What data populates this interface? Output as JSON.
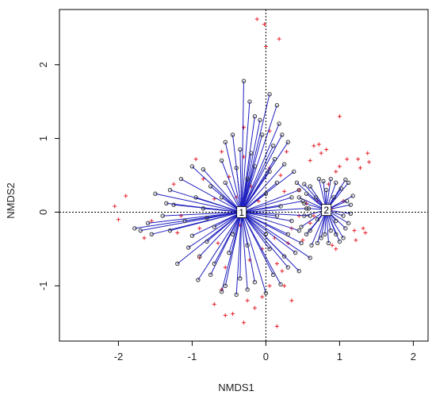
{
  "chart_data": {
    "type": "scatter",
    "title": "",
    "xlabel": "NMDS1",
    "ylabel": "NMDS2",
    "xlim": [
      -2.8,
      2.2
    ],
    "ylim": [
      -1.75,
      2.75
    ],
    "x_ticks": [
      -2,
      -1,
      0,
      1,
      2
    ],
    "y_ticks": [
      -1,
      0,
      1,
      2
    ],
    "reference_lines": {
      "x": 0,
      "y": 0,
      "style": "dotted"
    },
    "colors": {
      "spider_lines": "#1f1fbf",
      "site_points": "#333333",
      "species_points": "#e8202a",
      "frame": "#000000"
    },
    "centroids": [
      {
        "label": "1",
        "x": -0.33,
        "y": 0.0
      },
      {
        "label": "2",
        "x": 0.82,
        "y": 0.03
      }
    ],
    "group1_sites": [
      [
        -0.3,
        1.78
      ],
      [
        -0.22,
        1.5
      ],
      [
        -0.15,
        1.3
      ],
      [
        -0.08,
        1.25
      ],
      [
        0.05,
        1.6
      ],
      [
        0.15,
        1.45
      ],
      [
        0.18,
        1.2
      ],
      [
        0.22,
        1.05
      ],
      [
        -0.55,
        0.95
      ],
      [
        -0.35,
        0.85
      ],
      [
        0.1,
        0.9
      ],
      [
        0.3,
        0.95
      ],
      [
        -1.0,
        0.62
      ],
      [
        -0.85,
        0.58
      ],
      [
        -0.6,
        0.7
      ],
      [
        -0.4,
        0.6
      ],
      [
        -0.15,
        0.62
      ],
      [
        0.05,
        0.55
      ],
      [
        0.25,
        0.65
      ],
      [
        0.38,
        0.55
      ],
      [
        -1.3,
        0.3
      ],
      [
        -1.15,
        0.45
      ],
      [
        -0.95,
        0.2
      ],
      [
        -0.75,
        0.35
      ],
      [
        -0.55,
        0.4
      ],
      [
        -0.25,
        0.45
      ],
      [
        0.15,
        0.4
      ],
      [
        0.45,
        0.3
      ],
      [
        0.5,
        0.15
      ],
      [
        0.35,
        0.2
      ],
      [
        -1.5,
        0.25
      ],
      [
        -1.25,
        0.1
      ],
      [
        -0.85,
        0.05
      ],
      [
        0.2,
        0.08
      ],
      [
        0.55,
        0.05
      ],
      [
        0.6,
        -0.05
      ],
      [
        -1.6,
        -0.15
      ],
      [
        -1.4,
        -0.05
      ],
      [
        -1.1,
        -0.12
      ],
      [
        -0.8,
        -0.08
      ],
      [
        0.15,
        -0.05
      ],
      [
        0.35,
        -0.12
      ],
      [
        -1.78,
        -0.22
      ],
      [
        -1.7,
        -0.25
      ],
      [
        -1.55,
        -0.3
      ],
      [
        -1.3,
        -0.25
      ],
      [
        -1.0,
        -0.32
      ],
      [
        -0.7,
        -0.2
      ],
      [
        0.3,
        -0.3
      ],
      [
        0.45,
        -0.25
      ],
      [
        -1.05,
        -0.48
      ],
      [
        -0.9,
        -0.6
      ],
      [
        -0.7,
        -0.7
      ],
      [
        -0.5,
        -0.55
      ],
      [
        -0.25,
        -0.45
      ],
      [
        0.05,
        -0.5
      ],
      [
        0.25,
        -0.6
      ],
      [
        0.4,
        -0.55
      ],
      [
        -0.92,
        -0.92
      ],
      [
        -0.75,
        -0.85
      ],
      [
        -0.55,
        -1.0
      ],
      [
        -0.35,
        -0.9
      ],
      [
        -0.15,
        -0.95
      ],
      [
        0.1,
        -0.85
      ],
      [
        0.3,
        -0.75
      ],
      [
        0.45,
        -0.8
      ],
      [
        -0.6,
        -1.08
      ],
      [
        -0.4,
        -1.12
      ],
      [
        -0.25,
        -1.05
      ],
      [
        0.0,
        -1.1
      ],
      [
        0.2,
        -0.98
      ],
      [
        -0.8,
        -0.4
      ],
      [
        -0.45,
        -0.3
      ],
      [
        0.0,
        -0.3
      ],
      [
        -0.6,
        0.2
      ],
      [
        0.0,
        0.25
      ],
      [
        -0.2,
        0.8
      ],
      [
        0.12,
        0.72
      ],
      [
        -1.2,
        -0.7
      ],
      [
        0.48,
        -0.42
      ],
      [
        -0.05,
        1.05
      ],
      [
        -0.45,
        1.05
      ],
      [
        0.6,
        -0.62
      ],
      [
        -1.35,
        0.12
      ]
    ],
    "group2_sites": [
      [
        0.42,
        0.4
      ],
      [
        0.52,
        0.38
      ],
      [
        0.6,
        0.35
      ],
      [
        0.72,
        0.45
      ],
      [
        0.78,
        0.42
      ],
      [
        0.88,
        0.45
      ],
      [
        0.95,
        0.4
      ],
      [
        1.02,
        0.32
      ],
      [
        1.08,
        0.44
      ],
      [
        1.12,
        0.4
      ],
      [
        0.45,
        0.2
      ],
      [
        0.52,
        0.12
      ],
      [
        0.55,
        0.25
      ],
      [
        1.1,
        0.15
      ],
      [
        1.15,
        0.1
      ],
      [
        1.18,
        0.22
      ],
      [
        0.52,
        -0.05
      ],
      [
        0.48,
        -0.2
      ],
      [
        0.55,
        -0.3
      ],
      [
        0.6,
        -0.25
      ],
      [
        1.05,
        -0.05
      ],
      [
        1.12,
        -0.15
      ],
      [
        1.08,
        -0.22
      ],
      [
        0.62,
        -0.45
      ],
      [
        0.7,
        -0.42
      ],
      [
        0.75,
        -0.35
      ],
      [
        0.8,
        -0.3
      ],
      [
        0.88,
        -0.25
      ],
      [
        0.95,
        -0.3
      ],
      [
        1.0,
        -0.4
      ],
      [
        1.05,
        -0.35
      ],
      [
        0.68,
        0.2
      ],
      [
        0.92,
        0.2
      ],
      [
        0.7,
        -0.1
      ],
      [
        0.95,
        -0.12
      ],
      [
        0.82,
        0.3
      ],
      [
        0.85,
        -0.42
      ],
      [
        0.58,
        0.05
      ],
      [
        1.15,
        -0.02
      ]
    ],
    "species": [
      [
        -0.12,
        2.62
      ],
      [
        -0.02,
        2.55
      ],
      [
        0.18,
        2.35
      ],
      [
        0.0,
        2.25
      ],
      [
        -0.3,
        1.15
      ],
      [
        0.05,
        1.1
      ],
      [
        -0.6,
        0.82
      ],
      [
        -0.95,
        0.72
      ],
      [
        -0.3,
        0.75
      ],
      [
        0.28,
        0.82
      ],
      [
        -0.5,
        0.48
      ],
      [
        -1.25,
        0.38
      ],
      [
        -0.7,
        0.18
      ],
      [
        -0.2,
        0.35
      ],
      [
        0.25,
        0.28
      ],
      [
        -1.9,
        0.22
      ],
      [
        -2.05,
        0.08
      ],
      [
        -1.55,
        -0.12
      ],
      [
        -1.65,
        -0.35
      ],
      [
        -2.0,
        -0.1
      ],
      [
        -1.2,
        -0.28
      ],
      [
        -0.9,
        -0.22
      ],
      [
        -0.35,
        -0.18
      ],
      [
        0.3,
        -0.42
      ],
      [
        -0.9,
        -0.62
      ],
      [
        -0.55,
        -0.75
      ],
      [
        -0.22,
        -0.65
      ],
      [
        0.15,
        -0.7
      ],
      [
        0.05,
        -1.0
      ],
      [
        0.35,
        -1.2
      ],
      [
        -0.6,
        -1.05
      ],
      [
        -0.7,
        -1.25
      ],
      [
        -0.45,
        -1.38
      ],
      [
        -0.25,
        -1.2
      ],
      [
        -0.05,
        -1.15
      ],
      [
        -0.15,
        -1.3
      ],
      [
        -0.3,
        -1.5
      ],
      [
        -0.55,
        -1.4
      ],
      [
        0.15,
        -1.55
      ],
      [
        0.25,
        -1.0
      ],
      [
        0.55,
        0.12
      ],
      [
        0.45,
        0.3
      ],
      [
        0.6,
        0.7
      ],
      [
        0.65,
        0.9
      ],
      [
        0.75,
        0.8
      ],
      [
        0.72,
        0.92
      ],
      [
        0.82,
        0.85
      ],
      [
        1.0,
        1.3
      ],
      [
        1.1,
        0.72
      ],
      [
        1.25,
        0.72
      ],
      [
        1.38,
        0.8
      ],
      [
        1.4,
        0.68
      ],
      [
        1.28,
        0.6
      ],
      [
        1.0,
        0.62
      ],
      [
        0.95,
        0.55
      ],
      [
        0.7,
        0.15
      ],
      [
        0.9,
        0.05
      ],
      [
        0.65,
        -0.05
      ],
      [
        1.2,
        -0.25
      ],
      [
        1.35,
        -0.28
      ],
      [
        1.32,
        -0.22
      ],
      [
        1.22,
        -0.38
      ],
      [
        0.9,
        -0.45
      ],
      [
        0.95,
        -0.5
      ],
      [
        0.45,
        -0.05
      ],
      [
        -1.15,
        -0.05
      ],
      [
        -0.85,
        0.45
      ],
      [
        0.05,
        0.6
      ],
      [
        -0.1,
        0.15
      ],
      [
        0.35,
        -0.22
      ],
      [
        0.12,
        -0.35
      ],
      [
        -0.4,
        0.2
      ],
      [
        0.2,
        0.5
      ],
      [
        -0.65,
        -0.42
      ],
      [
        0.5,
        -0.38
      ],
      [
        0.85,
        0.38
      ],
      [
        1.05,
        0.15
      ],
      [
        0.6,
        -0.15
      ],
      [
        -0.05,
        -0.5
      ],
      [
        0.22,
        -0.8
      ]
    ]
  },
  "labels": {
    "x_axis_title": "NMDS1",
    "y_axis_title": "NMDS2"
  }
}
